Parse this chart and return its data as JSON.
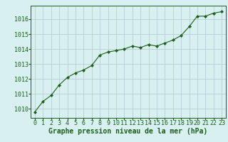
{
  "x": [
    0,
    1,
    2,
    3,
    4,
    5,
    6,
    7,
    8,
    9,
    10,
    11,
    12,
    13,
    14,
    15,
    16,
    17,
    18,
    19,
    20,
    21,
    22,
    23
  ],
  "y": [
    1009.8,
    1010.5,
    1010.9,
    1011.6,
    1012.1,
    1012.4,
    1012.6,
    1012.9,
    1013.6,
    1013.8,
    1013.9,
    1014.0,
    1014.2,
    1014.1,
    1014.3,
    1014.2,
    1014.4,
    1014.6,
    1014.9,
    1015.5,
    1016.2,
    1016.2,
    1016.4,
    1016.5
  ],
  "line_color": "#1a5e1a",
  "marker": "D",
  "marker_size": 2.2,
  "bg_color": "#d8f0f0",
  "grid_color": "#b0c8d0",
  "xlabel": "Graphe pression niveau de la mer (hPa)",
  "xlabel_color": "#1a5e1a",
  "xlabel_fontsize": 7,
  "tick_color": "#1a5e1a",
  "tick_fontsize": 6,
  "ytick_labels": [
    "1010",
    "1011",
    "1012",
    "1013",
    "1014",
    "1015",
    "1016"
  ],
  "ytick_values": [
    1010,
    1011,
    1012,
    1013,
    1014,
    1015,
    1016
  ],
  "ylim": [
    1009.4,
    1016.9
  ],
  "xlim": [
    -0.5,
    23.5
  ]
}
